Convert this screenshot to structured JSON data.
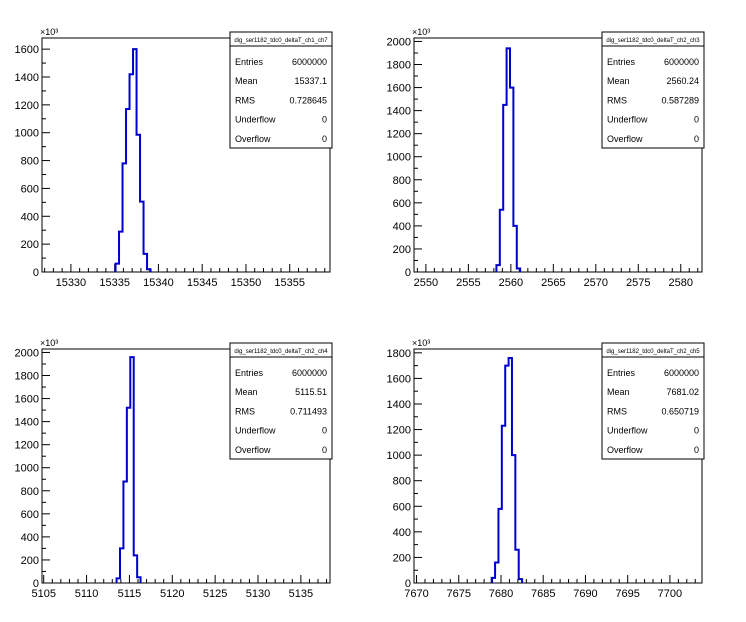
{
  "chart_data": [
    {
      "type": "histogram",
      "y_exponent_label": "×10³",
      "xlim": [
        15326.7,
        15359.6
      ],
      "ylim": [
        0,
        1680
      ],
      "x_ticks": [
        15330,
        15335,
        15340,
        15345,
        15350,
        15355
      ],
      "y_ticks": [
        0,
        200,
        400,
        600,
        800,
        1000,
        1200,
        1400,
        1600
      ],
      "bins": [
        {
          "x0": 15335.1,
          "x1": 15335.5,
          "value": 60
        },
        {
          "x0": 15335.5,
          "x1": 15335.9,
          "value": 290
        },
        {
          "x0": 15335.9,
          "x1": 15336.3,
          "value": 780
        },
        {
          "x0": 15336.3,
          "x1": 15336.7,
          "value": 1170
        },
        {
          "x0": 15336.7,
          "x1": 15337.1,
          "value": 1420
        },
        {
          "x0": 15337.1,
          "x1": 15337.5,
          "value": 1600
        },
        {
          "x0": 15337.5,
          "x1": 15337.9,
          "value": 985
        },
        {
          "x0": 15337.9,
          "x1": 15338.3,
          "value": 505
        },
        {
          "x0": 15338.3,
          "x1": 15338.7,
          "value": 130
        },
        {
          "x0": 15338.7,
          "x1": 15339.1,
          "value": 20
        }
      ],
      "stats": {
        "title": "dig_ser1182_tdc0_deltaT_ch1_ch7",
        "rows": [
          {
            "label": "Entries",
            "value": "6000000"
          },
          {
            "label": "Mean",
            "value": "15337.1"
          },
          {
            "label": "RMS",
            "value": "0.728645"
          },
          {
            "label": "Underflow",
            "value": "0"
          },
          {
            "label": "Overflow",
            "value": "0"
          }
        ]
      }
    },
    {
      "type": "histogram",
      "y_exponent_label": "×10³",
      "xlim": [
        2548.6,
        2582.5
      ],
      "ylim": [
        0,
        2030
      ],
      "x_ticks": [
        2550,
        2555,
        2560,
        2565,
        2570,
        2575,
        2580
      ],
      "y_ticks": [
        0,
        200,
        400,
        600,
        800,
        1000,
        1200,
        1400,
        1600,
        1800,
        2000
      ],
      "bins": [
        {
          "x0": 2558.3,
          "x1": 2558.7,
          "value": 60
        },
        {
          "x0": 2558.7,
          "x1": 2559.1,
          "value": 540
        },
        {
          "x0": 2559.1,
          "x1": 2559.5,
          "value": 1450
        },
        {
          "x0": 2559.5,
          "x1": 2559.9,
          "value": 1940
        },
        {
          "x0": 2559.9,
          "x1": 2560.3,
          "value": 1600
        },
        {
          "x0": 2560.3,
          "x1": 2560.7,
          "value": 400
        },
        {
          "x0": 2560.7,
          "x1": 2561.1,
          "value": 30
        }
      ],
      "stats": {
        "title": "dig_ser1182_tdc0_deltaT_ch2_ch3",
        "rows": [
          {
            "label": "Entries",
            "value": "6000000"
          },
          {
            "label": "Mean",
            "value": "2560.24"
          },
          {
            "label": "RMS",
            "value": "0.587289"
          },
          {
            "label": "Underflow",
            "value": "0"
          },
          {
            "label": "Overflow",
            "value": "0"
          }
        ]
      }
    },
    {
      "type": "histogram",
      "y_exponent_label": "×10³",
      "xlim": [
        5104.8,
        5138.4
      ],
      "ylim": [
        0,
        2030
      ],
      "x_ticks": [
        5105,
        5110,
        5115,
        5120,
        5125,
        5130,
        5135
      ],
      "y_ticks": [
        0,
        200,
        400,
        600,
        800,
        1000,
        1200,
        1400,
        1600,
        1800,
        2000
      ],
      "bins": [
        {
          "x0": 5113.5,
          "x1": 5113.9,
          "value": 40
        },
        {
          "x0": 5113.9,
          "x1": 5114.3,
          "value": 300
        },
        {
          "x0": 5114.3,
          "x1": 5114.7,
          "value": 880
        },
        {
          "x0": 5114.7,
          "x1": 5115.1,
          "value": 1520
        },
        {
          "x0": 5115.1,
          "x1": 5115.5,
          "value": 1960
        },
        {
          "x0": 5115.5,
          "x1": 5115.9,
          "value": 240
        },
        {
          "x0": 5115.9,
          "x1": 5116.3,
          "value": 50
        }
      ],
      "stats": {
        "title": "dig_ser1182_tdc0_deltaT_ch2_ch4",
        "rows": [
          {
            "label": "Entries",
            "value": "6000000"
          },
          {
            "label": "Mean",
            "value": "5115.51"
          },
          {
            "label": "RMS",
            "value": "0.711493"
          },
          {
            "label": "Underflow",
            "value": "0"
          },
          {
            "label": "Overflow",
            "value": "0"
          }
        ]
      }
    },
    {
      "type": "histogram",
      "y_exponent_label": "×10³",
      "xlim": [
        7669.7,
        7703.8
      ],
      "ylim": [
        0,
        1830
      ],
      "x_ticks": [
        7670,
        7675,
        7680,
        7685,
        7690,
        7695,
        7700
      ],
      "y_ticks": [
        0,
        200,
        400,
        600,
        800,
        1000,
        1200,
        1400,
        1600,
        1800
      ],
      "bins": [
        {
          "x0": 7678.9,
          "x1": 7679.3,
          "value": 40
        },
        {
          "x0": 7679.3,
          "x1": 7679.7,
          "value": 160
        },
        {
          "x0": 7679.7,
          "x1": 7680.1,
          "value": 580
        },
        {
          "x0": 7680.1,
          "x1": 7680.5,
          "value": 1230
        },
        {
          "x0": 7680.5,
          "x1": 7680.9,
          "value": 1700
        },
        {
          "x0": 7680.9,
          "x1": 7681.3,
          "value": 1760
        },
        {
          "x0": 7681.3,
          "x1": 7681.7,
          "value": 1000
        },
        {
          "x0": 7681.7,
          "x1": 7682.1,
          "value": 260
        },
        {
          "x0": 7682.1,
          "x1": 7682.5,
          "value": 30
        }
      ],
      "stats": {
        "title": "dig_ser1182_tdc0_deltaT_ch2_ch5",
        "rows": [
          {
            "label": "Entries",
            "value": "6000000"
          },
          {
            "label": "Mean",
            "value": "7681.02"
          },
          {
            "label": "RMS",
            "value": "0.650719"
          },
          {
            "label": "Underflow",
            "value": "0"
          },
          {
            "label": "Overflow",
            "value": "0"
          }
        ]
      }
    }
  ],
  "colors": {
    "line": "#0000cc",
    "axis": "#000000",
    "background": "#ffffff"
  }
}
